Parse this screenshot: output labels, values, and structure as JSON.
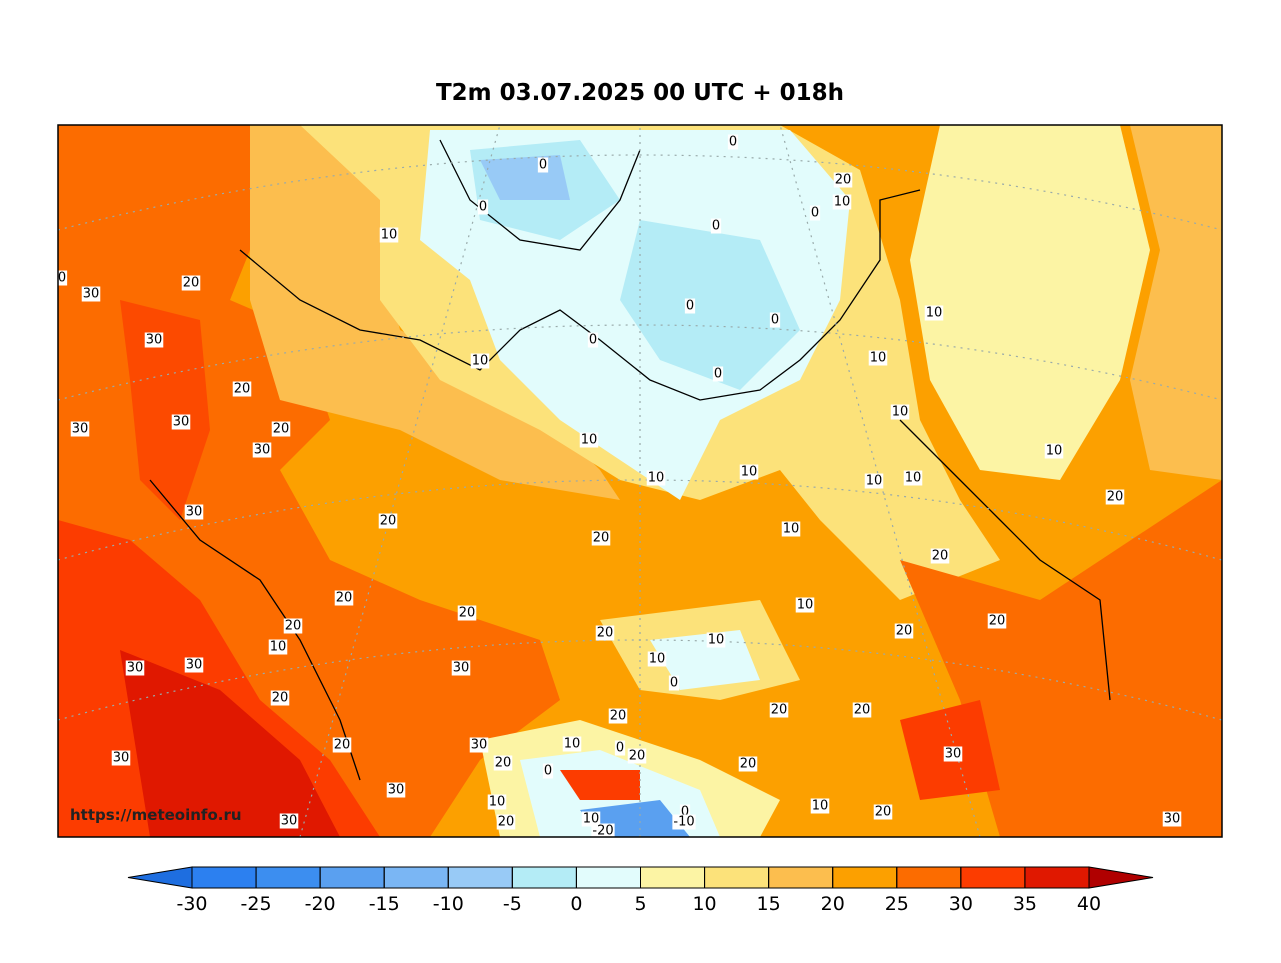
{
  "map": {
    "title": "T2m 03.07.2025 00 UTC + 018h",
    "watermark": "https://meteoinfo.ru",
    "labels": [
      "0",
      "0",
      "20",
      "10",
      "0",
      "0",
      "0",
      "10",
      "20",
      "30",
      "30",
      "0",
      "0",
      "10",
      "10",
      "0",
      "10",
      "0",
      "20",
      "30",
      "30",
      "20",
      "10",
      "10",
      "30",
      "10",
      "10",
      "10",
      "10",
      "10",
      "20",
      "30",
      "20",
      "10",
      "20",
      "20",
      "20",
      "10",
      "20",
      "20",
      "20",
      "20",
      "20",
      "10",
      "10",
      "10",
      "30",
      "30",
      "30",
      "0",
      "20",
      "20",
      "20",
      "20",
      "30",
      "20",
      "30",
      "10",
      "0",
      "20",
      "30",
      "20",
      "0",
      "20",
      "30",
      "10",
      "10",
      "0",
      "20",
      "30",
      "20",
      "10",
      "-10",
      "-20",
      "30",
      "0"
    ]
  },
  "colorbar": {
    "ticks": [
      -30,
      -25,
      -20,
      -15,
      -10,
      -5,
      0,
      5,
      10,
      15,
      20,
      25,
      30,
      35,
      40
    ],
    "under_color": "#1e6ee0",
    "over_color": "#b00000",
    "colors": [
      "#2c80f0",
      "#3c8ef0",
      "#5aa0f0",
      "#7ab6f4",
      "#98caf6",
      "#b4ecf6",
      "#e2fcfc",
      "#fcf4a4",
      "#fce27a",
      "#fcbe4e",
      "#fca000",
      "#fc6c00",
      "#fc3c00",
      "#e01800"
    ]
  }
}
